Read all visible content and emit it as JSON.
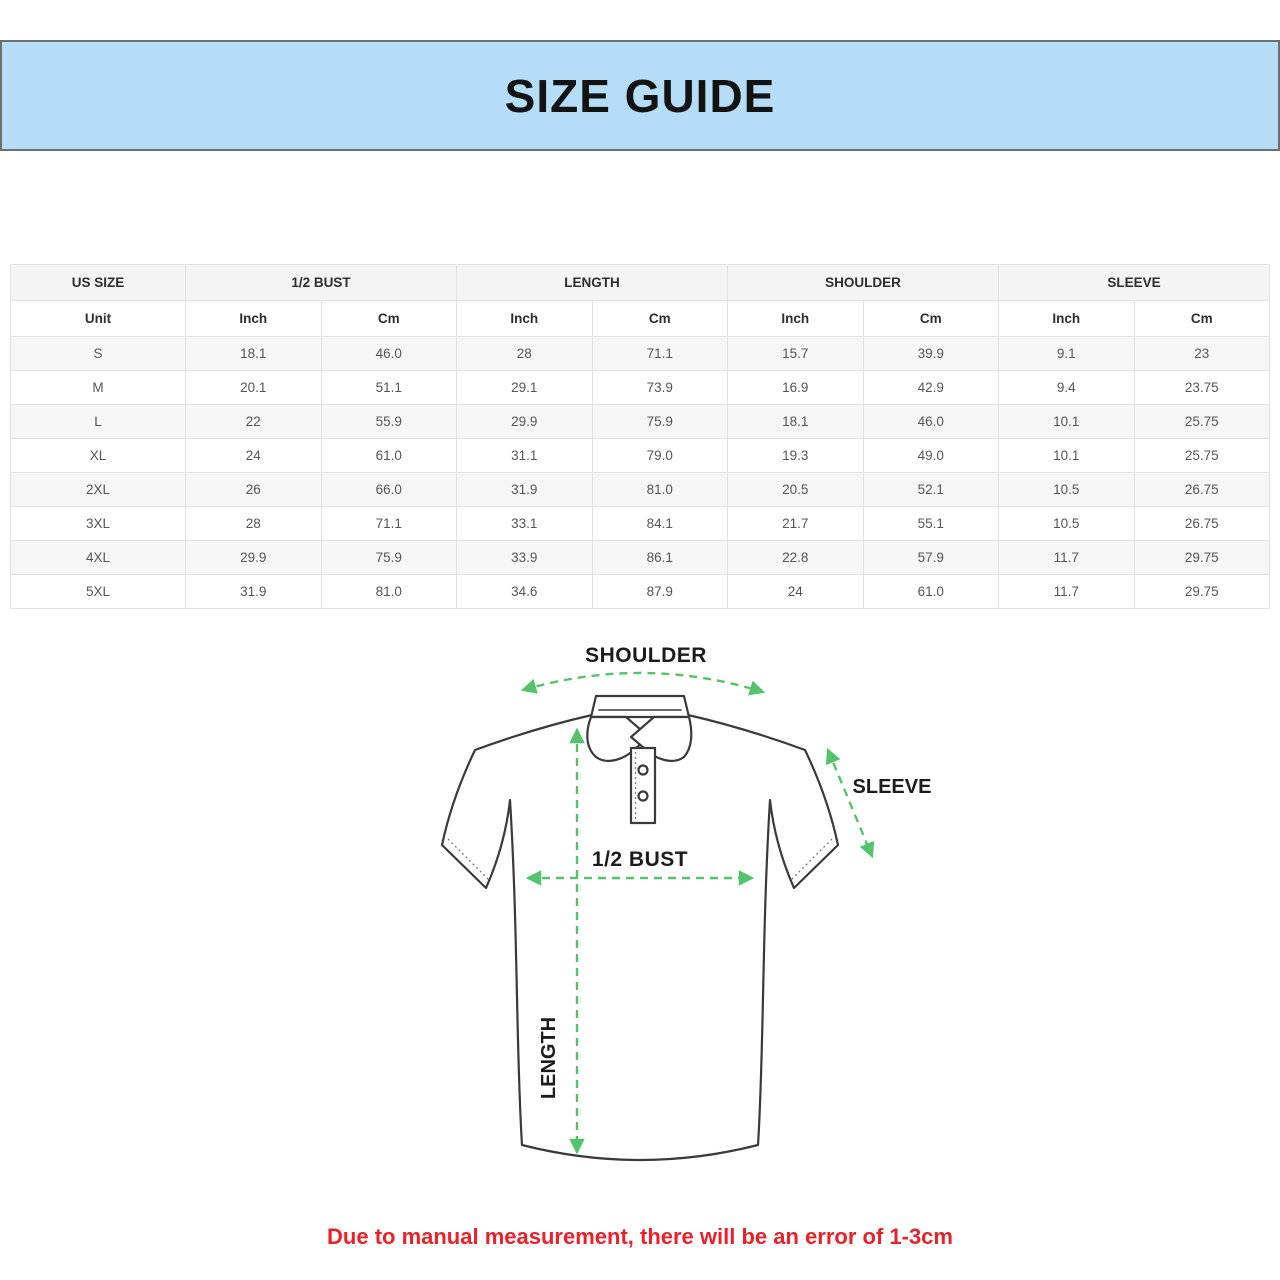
{
  "banner": {
    "title": "SIZE GUIDE",
    "bg_color": "#b5ddf7",
    "border_color": "#6f6f70"
  },
  "table": {
    "group_headers": [
      {
        "label": "US SIZE",
        "span": 1
      },
      {
        "label": "1/2 BUST",
        "span": 2
      },
      {
        "label": "LENGTH",
        "span": 2
      },
      {
        "label": "SHOULDER",
        "span": 2
      },
      {
        "label": "SLEEVE",
        "span": 2
      }
    ],
    "unit_row": [
      "Unit",
      "Inch",
      "Cm",
      "Inch",
      "Cm",
      "Inch",
      "Cm",
      "Inch",
      "Cm"
    ],
    "rows": [
      [
        "S",
        "18.1",
        "46.0",
        "28",
        "71.1",
        "15.7",
        "39.9",
        "9.1",
        "23"
      ],
      [
        "M",
        "20.1",
        "51.1",
        "29.1",
        "73.9",
        "16.9",
        "42.9",
        "9.4",
        "23.75"
      ],
      [
        "L",
        "22",
        "55.9",
        "29.9",
        "75.9",
        "18.1",
        "46.0",
        "10.1",
        "25.75"
      ],
      [
        "XL",
        "24",
        "61.0",
        "31.1",
        "79.0",
        "19.3",
        "49.0",
        "10.1",
        "25.75"
      ],
      [
        "2XL",
        "26",
        "66.0",
        "31.9",
        "81.0",
        "20.5",
        "52.1",
        "10.5",
        "26.75"
      ],
      [
        "3XL",
        "28",
        "71.1",
        "33.1",
        "84.1",
        "21.7",
        "55.1",
        "10.5",
        "26.75"
      ],
      [
        "4XL",
        "29.9",
        "75.9",
        "33.9",
        "86.1",
        "22.8",
        "57.9",
        "11.7",
        "29.75"
      ],
      [
        "5XL",
        "31.9",
        "81.0",
        "34.6",
        "87.9",
        "24",
        "61.0",
        "11.7",
        "29.75"
      ]
    ]
  },
  "diagram": {
    "shoulder_label": "SHOULDER",
    "sleeve_label": "SLEEVE",
    "bust_label": "1/2 BUST",
    "length_label": "LENGTH",
    "arrow_color": "#54c36c",
    "outline_color": "#3a3a3a"
  },
  "footnote": {
    "text": "Due to manual measurement, there will be an error of 1-3cm",
    "color": "#e6222a"
  }
}
